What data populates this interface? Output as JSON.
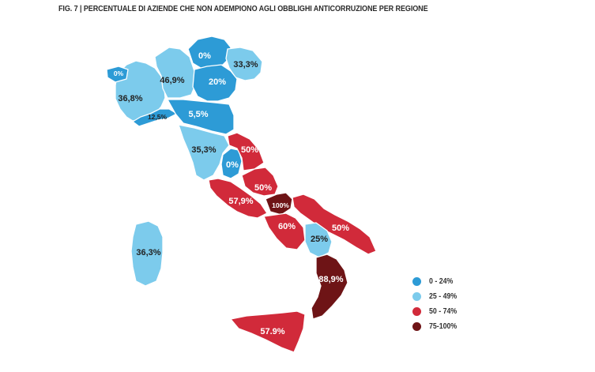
{
  "title": "FIG. 7 | PERCENTUALE DI AZIENDE CHE NON ADEMPIONO AGLI OBBLIGHI ANTICORRUZIONE PER REGIONE",
  "colors": {
    "c0_24": "#2d9bd6",
    "c25_49": "#7ccbec",
    "c50_74": "#d12a3a",
    "c75_100": "#6e1416"
  },
  "legend": [
    {
      "label": "0 - 24%",
      "color": "#2d9bd6"
    },
    {
      "label": "25 - 49%",
      "color": "#7ccbec"
    },
    {
      "label": "50 - 74%",
      "color": "#d12a3a"
    },
    {
      "label": "75-100%",
      "color": "#6e1416"
    }
  ],
  "regions": [
    {
      "name": "Valle d'Aosta",
      "value": "0%",
      "class": "0 - 24%"
    },
    {
      "name": "Piemonte",
      "value": "36,8%",
      "class": "25 - 49%"
    },
    {
      "name": "Lombardia",
      "value": "46,9%",
      "class": "25 - 49%"
    },
    {
      "name": "Trentino-Alto Adige",
      "value": "0%",
      "class": "0 - 24%"
    },
    {
      "name": "Veneto",
      "value": "20%",
      "class": "0 - 24%"
    },
    {
      "name": "Friuli-Venezia Giulia",
      "value": "33,3%",
      "class": "25 - 49%"
    },
    {
      "name": "Liguria",
      "value": "12,5%",
      "class": "0 - 24%"
    },
    {
      "name": "Emilia-Romagna",
      "value": "5,5%",
      "class": "0 - 24%"
    },
    {
      "name": "Toscana",
      "value": "35,3%",
      "class": "25 - 49%"
    },
    {
      "name": "Umbria",
      "value": "0%",
      "class": "0 - 24%"
    },
    {
      "name": "Marche",
      "value": "50%",
      "class": "50 - 74%"
    },
    {
      "name": "Lazio",
      "value": "57,9%",
      "class": "50 - 74%"
    },
    {
      "name": "Abruzzo",
      "value": "50%",
      "class": "50 - 74%"
    },
    {
      "name": "Molise",
      "value": "100%",
      "class": "75-100%"
    },
    {
      "name": "Campania",
      "value": "60%",
      "class": "50 - 74%"
    },
    {
      "name": "Puglia",
      "value": "50%",
      "class": "50 - 74%"
    },
    {
      "name": "Basilicata",
      "value": "25%",
      "class": "25 - 49%"
    },
    {
      "name": "Calabria",
      "value": "88,9%",
      "class": "75-100%"
    },
    {
      "name": "Sicilia",
      "value": "57.9%",
      "class": "50 - 74%"
    },
    {
      "name": "Sardegna",
      "value": "36,3%",
      "class": "25 - 49%"
    }
  ]
}
